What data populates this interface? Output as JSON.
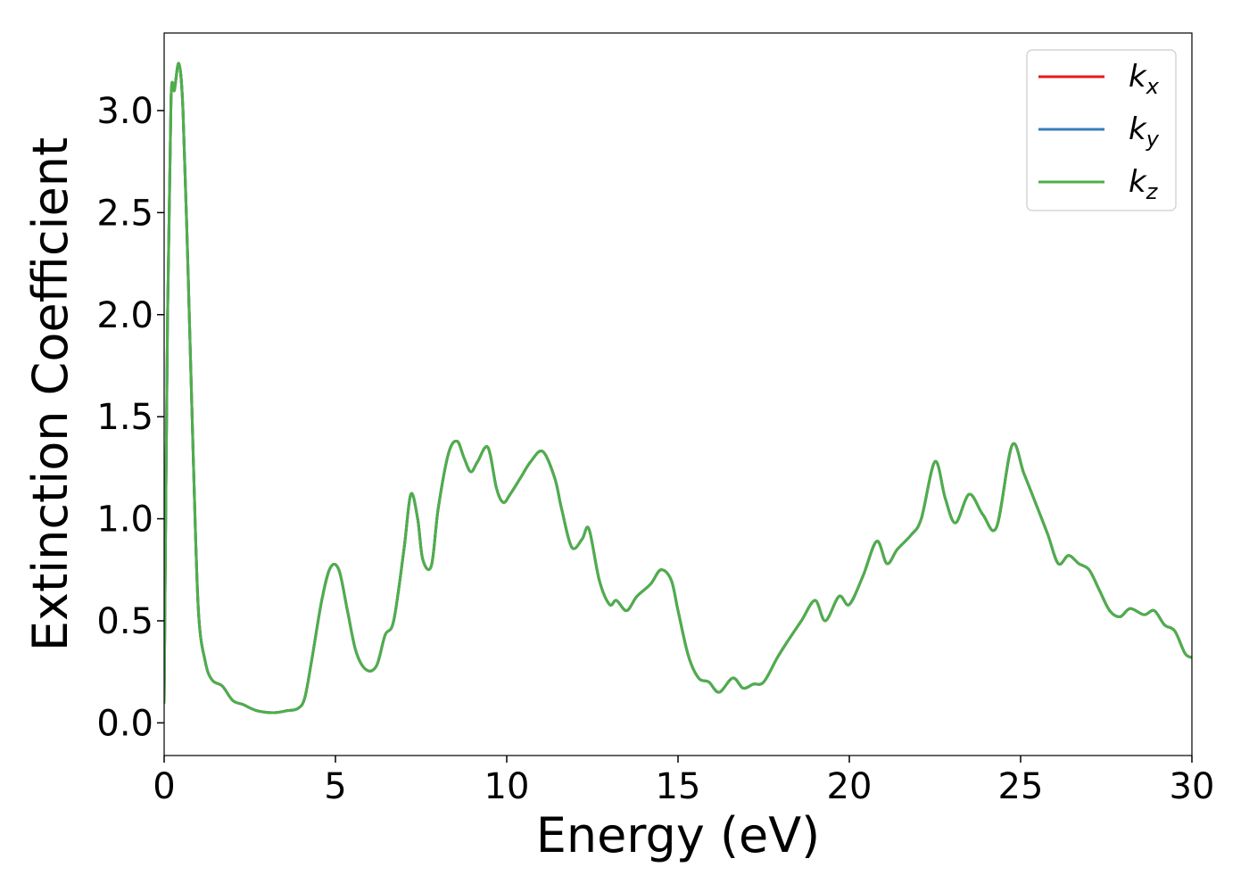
{
  "chart_data": {
    "type": "line",
    "title": "",
    "xlabel": "Energy (eV)",
    "ylabel": "Extinction Coefficient",
    "xlim": [
      0,
      30
    ],
    "ylim": [
      -0.16,
      3.38
    ],
    "xticks": [
      0,
      5,
      10,
      15,
      20,
      25,
      30
    ],
    "xtick_labels": [
      "0",
      "5",
      "10",
      "15",
      "20",
      "25",
      "30"
    ],
    "yticks": [
      0.0,
      0.5,
      1.0,
      1.5,
      2.0,
      2.5,
      3.0
    ],
    "ytick_labels": [
      "0.0",
      "0.5",
      "1.0",
      "1.5",
      "2.0",
      "2.5",
      "3.0"
    ],
    "grid": false,
    "legend_position": "top-right",
    "series": [
      {
        "name": "k",
        "subscript": "x",
        "color": "#e41a1c"
      },
      {
        "name": "k",
        "subscript": "y",
        "color": "#377eb8"
      },
      {
        "name": "k",
        "subscript": "z",
        "color": "#4daf4a"
      }
    ],
    "x": [
      0,
      0.1,
      0.2,
      0.3,
      0.43,
      0.55,
      0.7,
      0.85,
      1.0,
      1.2,
      1.4,
      1.7,
      2.0,
      2.3,
      2.7,
      3.2,
      3.6,
      3.9,
      4.1,
      4.3,
      4.6,
      4.85,
      5.1,
      5.35,
      5.6,
      5.9,
      6.2,
      6.45,
      6.7,
      7.0,
      7.2,
      7.4,
      7.55,
      7.8,
      8.0,
      8.3,
      8.55,
      8.75,
      8.95,
      9.15,
      9.45,
      9.7,
      9.9,
      10.1,
      10.4,
      10.7,
      11.05,
      11.4,
      11.6,
      11.9,
      12.2,
      12.4,
      12.7,
      13.0,
      13.2,
      13.5,
      13.8,
      14.2,
      14.5,
      14.8,
      15.0,
      15.3,
      15.6,
      15.9,
      16.2,
      16.6,
      16.9,
      17.2,
      17.5,
      17.9,
      18.2,
      18.6,
      19.0,
      19.3,
      19.7,
      20.0,
      20.4,
      20.8,
      21.1,
      21.4,
      21.8,
      22.1,
      22.5,
      22.8,
      23.1,
      23.5,
      23.9,
      24.3,
      24.75,
      25.1,
      25.5,
      25.8,
      26.1,
      26.4,
      26.7,
      27.0,
      27.3,
      27.6,
      27.9,
      28.2,
      28.6,
      28.9,
      29.2,
      29.5,
      29.8,
      30.0
    ],
    "y_kx": [
      0.1,
      2.0,
      3.05,
      3.1,
      3.23,
      3.0,
      2.2,
      1.3,
      0.55,
      0.3,
      0.21,
      0.18,
      0.11,
      0.09,
      0.06,
      0.05,
      0.06,
      0.07,
      0.12,
      0.3,
      0.6,
      0.76,
      0.75,
      0.55,
      0.35,
      0.26,
      0.28,
      0.43,
      0.5,
      0.85,
      1.12,
      1.0,
      0.8,
      0.77,
      1.05,
      1.32,
      1.38,
      1.3,
      1.23,
      1.28,
      1.35,
      1.15,
      1.08,
      1.12,
      1.2,
      1.28,
      1.33,
      1.2,
      1.05,
      0.86,
      0.9,
      0.95,
      0.7,
      0.58,
      0.6,
      0.55,
      0.62,
      0.68,
      0.75,
      0.7,
      0.55,
      0.33,
      0.22,
      0.2,
      0.15,
      0.22,
      0.17,
      0.19,
      0.2,
      0.32,
      0.4,
      0.5,
      0.6,
      0.5,
      0.62,
      0.58,
      0.72,
      0.89,
      0.78,
      0.85,
      0.92,
      1.0,
      1.28,
      1.1,
      0.98,
      1.12,
      1.02,
      0.96,
      1.36,
      1.22,
      1.05,
      0.92,
      0.78,
      0.82,
      0.78,
      0.75,
      0.65,
      0.55,
      0.52,
      0.56,
      0.53,
      0.55,
      0.48,
      0.45,
      0.34,
      0.32
    ],
    "y_ky": [
      0.1,
      2.0,
      3.05,
      3.1,
      3.23,
      3.0,
      2.2,
      1.3,
      0.55,
      0.3,
      0.21,
      0.18,
      0.11,
      0.09,
      0.06,
      0.05,
      0.06,
      0.07,
      0.12,
      0.3,
      0.6,
      0.76,
      0.75,
      0.55,
      0.35,
      0.26,
      0.28,
      0.43,
      0.5,
      0.85,
      1.12,
      1.0,
      0.8,
      0.77,
      1.05,
      1.32,
      1.38,
      1.3,
      1.23,
      1.28,
      1.35,
      1.15,
      1.08,
      1.12,
      1.2,
      1.28,
      1.33,
      1.2,
      1.05,
      0.86,
      0.9,
      0.95,
      0.7,
      0.58,
      0.6,
      0.55,
      0.62,
      0.68,
      0.75,
      0.7,
      0.55,
      0.33,
      0.22,
      0.2,
      0.15,
      0.22,
      0.17,
      0.19,
      0.2,
      0.32,
      0.4,
      0.5,
      0.6,
      0.5,
      0.62,
      0.58,
      0.72,
      0.89,
      0.78,
      0.85,
      0.92,
      1.0,
      1.28,
      1.1,
      0.98,
      1.12,
      1.02,
      0.96,
      1.36,
      1.22,
      1.05,
      0.92,
      0.78,
      0.82,
      0.78,
      0.75,
      0.65,
      0.55,
      0.52,
      0.56,
      0.53,
      0.55,
      0.48,
      0.45,
      0.34,
      0.32
    ],
    "y_kz": [
      0.1,
      2.0,
      3.05,
      3.1,
      3.23,
      3.0,
      2.2,
      1.3,
      0.55,
      0.3,
      0.21,
      0.18,
      0.11,
      0.09,
      0.06,
      0.05,
      0.06,
      0.07,
      0.12,
      0.3,
      0.6,
      0.76,
      0.75,
      0.55,
      0.35,
      0.26,
      0.28,
      0.43,
      0.5,
      0.85,
      1.12,
      1.0,
      0.8,
      0.77,
      1.05,
      1.32,
      1.38,
      1.3,
      1.23,
      1.28,
      1.35,
      1.15,
      1.08,
      1.12,
      1.2,
      1.28,
      1.33,
      1.2,
      1.05,
      0.86,
      0.9,
      0.95,
      0.7,
      0.58,
      0.6,
      0.55,
      0.62,
      0.68,
      0.75,
      0.7,
      0.55,
      0.33,
      0.22,
      0.2,
      0.15,
      0.22,
      0.17,
      0.19,
      0.2,
      0.32,
      0.4,
      0.5,
      0.6,
      0.5,
      0.62,
      0.58,
      0.72,
      0.89,
      0.78,
      0.85,
      0.92,
      1.0,
      1.28,
      1.1,
      0.98,
      1.12,
      1.02,
      0.96,
      1.36,
      1.22,
      1.05,
      0.92,
      0.78,
      0.82,
      0.78,
      0.75,
      0.65,
      0.55,
      0.52,
      0.56,
      0.53,
      0.55,
      0.48,
      0.45,
      0.34,
      0.32
    ]
  }
}
